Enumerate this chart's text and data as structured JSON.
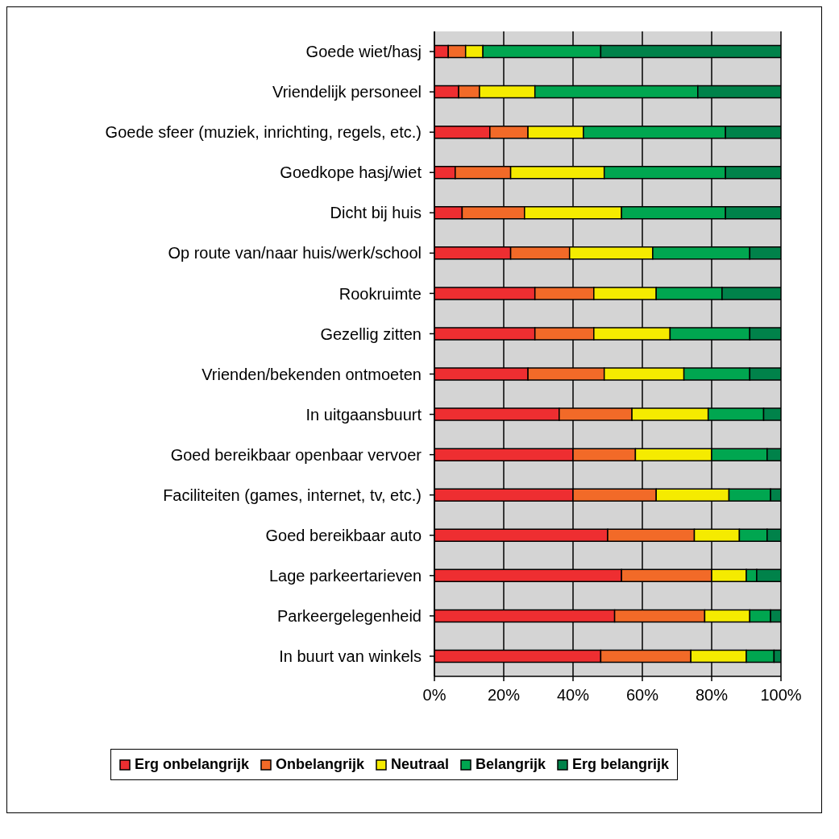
{
  "chart_data": {
    "type": "bar",
    "orientation": "horizontal",
    "stacked": true,
    "categories": [
      "Goede wiet/hasj",
      "Vriendelijk personeel",
      "Goede sfeer (muziek, inrichting, regels, etc.)",
      "Goedkope hasj/wiet",
      "Dicht bij huis",
      "Op route van/naar huis/werk/school",
      "Rookruimte",
      "Gezellig zitten",
      "Vrienden/bekenden ontmoeten",
      "In uitgaansbuurt",
      "Goed bereikbaar openbaar vervoer",
      "Faciliteiten (games, internet, tv, etc.)",
      "Goed bereikbaar auto",
      "Lage parkeertarieven",
      "Parkeergelegenheid",
      "In buurt van winkels"
    ],
    "series": [
      {
        "name": "Erg onbelangrijk",
        "color": "#ee2e31",
        "values": [
          4,
          7,
          16,
          6,
          8,
          22,
          29,
          29,
          27,
          36,
          40,
          40,
          50,
          54,
          52,
          48
        ]
      },
      {
        "name": "Onbelangrijk",
        "color": "#f26a28",
        "values": [
          5,
          6,
          11,
          16,
          18,
          17,
          17,
          17,
          22,
          21,
          18,
          24,
          25,
          26,
          26,
          26
        ]
      },
      {
        "name": "Neutraal",
        "color": "#f5eb00",
        "values": [
          5,
          16,
          16,
          27,
          28,
          24,
          18,
          22,
          23,
          22,
          22,
          21,
          13,
          10,
          13,
          16
        ]
      },
      {
        "name": "Belangrijk",
        "color": "#00a650",
        "values": [
          34,
          47,
          41,
          35,
          30,
          28,
          19,
          23,
          19,
          16,
          16,
          12,
          8,
          3,
          6,
          8
        ]
      },
      {
        "name": "Erg belangrijk",
        "color": "#00824a",
        "values": [
          52,
          24,
          16,
          16,
          16,
          9,
          17,
          9,
          9,
          5,
          4,
          3,
          4,
          7,
          3,
          2
        ]
      }
    ],
    "xlim": [
      0,
      100
    ],
    "xticks": [
      {
        "value": 0,
        "label": "0%"
      },
      {
        "value": 20,
        "label": "20%"
      },
      {
        "value": 40,
        "label": "40%"
      },
      {
        "value": 60,
        "label": "60%"
      },
      {
        "value": 80,
        "label": "80%"
      },
      {
        "value": 100,
        "label": "100%"
      }
    ],
    "grid": "x",
    "legend": "bottom"
  }
}
